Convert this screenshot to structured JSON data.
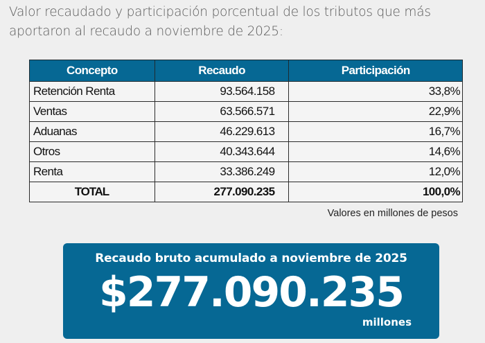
{
  "intro": {
    "text": "Valor recaudado y participación porcentual de los tributos que más aportaron al recaudo a noviembre de 2025:"
  },
  "table": {
    "headers": [
      "Concepto",
      "Recaudo",
      "Participación"
    ],
    "rows": [
      {
        "concepto": "Retención Renta",
        "recaudo": "93.564.158",
        "participacion": "33,8%"
      },
      {
        "concepto": "Ventas",
        "recaudo": "63.566.571",
        "participacion": "22,9%"
      },
      {
        "concepto": "Aduanas",
        "recaudo": "46.229.613",
        "participacion": "16,7%"
      },
      {
        "concepto": "Otros",
        "recaudo": "40.343.644",
        "participacion": "14,6%"
      },
      {
        "concepto": "Renta",
        "recaudo": "33.386.249",
        "participacion": "12,0%"
      }
    ],
    "total": {
      "concepto": "TOTAL",
      "recaudo": "277.090.235",
      "participacion": "100,0%"
    },
    "header_color": "#066894"
  },
  "note": "Valores en millones de pesos",
  "summary": {
    "title": "Recaudo bruto acumulado a noviembre de 2025",
    "amount": "$277.090.235",
    "unit": "millones",
    "background_color": "#066894"
  }
}
